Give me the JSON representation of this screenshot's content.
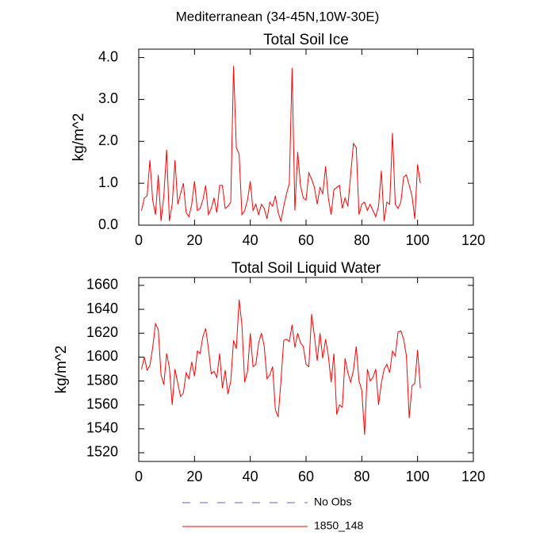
{
  "title": "Mediterranean (34-45N,10W-30E)",
  "legend": [
    {
      "name": "No Obs",
      "color": "#6a5acd",
      "dashed": true
    },
    {
      "name": "1850_148",
      "color": "#ff0000",
      "dashed": false
    }
  ],
  "chart_data": [
    {
      "type": "line",
      "title": "Total Soil Ice",
      "ylabel": "kg/m^2",
      "x": [
        1,
        2,
        3,
        4,
        5,
        6,
        7,
        8,
        9,
        10,
        11,
        12,
        13,
        14,
        15,
        16,
        17,
        18,
        19,
        20,
        21,
        22,
        23,
        24,
        25,
        26,
        27,
        28,
        29,
        30,
        31,
        32,
        33,
        34,
        35,
        36,
        37,
        38,
        39,
        40,
        41,
        42,
        43,
        44,
        45,
        46,
        47,
        48,
        49,
        50,
        51,
        52,
        53,
        54,
        55,
        56,
        57,
        58,
        59,
        60,
        61,
        62,
        63,
        64,
        65,
        66,
        67,
        68,
        69,
        70,
        71,
        72,
        73,
        74,
        75,
        76,
        77,
        78,
        79,
        80,
        81,
        82,
        83,
        84,
        85,
        86,
        87,
        88,
        89,
        90,
        91,
        92,
        93,
        94,
        95,
        96,
        97,
        98,
        99,
        100,
        101
      ],
      "series": [
        {
          "name": "1850_148",
          "color": "#ff0000",
          "values": [
            0.35,
            0.65,
            0.7,
            1.55,
            0.6,
            0.25,
            1.2,
            0.1,
            0.7,
            1.8,
            0.1,
            0.5,
            1.55,
            0.5,
            0.75,
            1.0,
            0.3,
            0.2,
            0.5,
            1.05,
            0.35,
            0.4,
            0.6,
            0.95,
            0.25,
            0.4,
            0.65,
            0.3,
            0.95,
            0.95,
            0.4,
            0.45,
            0.55,
            3.8,
            1.85,
            1.7,
            0.25,
            0.35,
            0.6,
            1.05,
            0.35,
            0.5,
            0.25,
            0.5,
            0.4,
            0.15,
            0.55,
            0.45,
            0.7,
            0.3,
            0.1,
            0.45,
            0.75,
            1.0,
            3.75,
            0.35,
            1.75,
            0.95,
            0.65,
            0.6,
            1.25,
            1.1,
            0.9,
            0.5,
            0.9,
            0.75,
            1.4,
            0.65,
            0.25,
            0.85,
            0.9,
            0.95,
            0.4,
            0.65,
            0.45,
            1.2,
            1.95,
            1.85,
            0.25,
            0.5,
            0.55,
            0.35,
            0.5,
            0.35,
            0.2,
            0.45,
            1.3,
            0.1,
            0.55,
            0.5,
            2.2,
            0.5,
            0.4,
            0.55,
            1.15,
            1.2,
            0.95,
            0.7,
            0.15,
            1.45,
            1.0
          ]
        }
      ],
      "xlim": [
        0,
        120
      ],
      "xticks": [
        0,
        20,
        40,
        60,
        80,
        100,
        120
      ],
      "ylim": [
        0,
        4.2
      ],
      "yticks": [
        {
          "value": 0,
          "label": "0.0"
        },
        {
          "value": 1,
          "label": "1.0"
        },
        {
          "value": 2,
          "label": "2.0"
        },
        {
          "value": 3,
          "label": "3.0"
        },
        {
          "value": 4,
          "label": "4.0"
        }
      ]
    },
    {
      "type": "line",
      "title": "Total Soil Liquid Water",
      "ylabel": "kg/m^2",
      "x": [
        1,
        2,
        3,
        4,
        5,
        6,
        7,
        8,
        9,
        10,
        11,
        12,
        13,
        14,
        15,
        16,
        17,
        18,
        19,
        20,
        21,
        22,
        23,
        24,
        25,
        26,
        27,
        28,
        29,
        30,
        31,
        32,
        33,
        34,
        35,
        36,
        37,
        38,
        39,
        40,
        41,
        42,
        43,
        44,
        45,
        46,
        47,
        48,
        49,
        50,
        51,
        52,
        53,
        54,
        55,
        56,
        57,
        58,
        59,
        60,
        61,
        62,
        63,
        64,
        65,
        66,
        67,
        68,
        69,
        70,
        71,
        72,
        73,
        74,
        75,
        76,
        77,
        78,
        79,
        80,
        81,
        82,
        83,
        84,
        85,
        86,
        87,
        88,
        89,
        90,
        91,
        92,
        93,
        94,
        95,
        96,
        97,
        98,
        99,
        100,
        101
      ],
      "series": [
        {
          "name": "1850_148",
          "color": "#ff0000",
          "values": [
            1590,
            1600,
            1589,
            1593,
            1608,
            1628,
            1623,
            1585,
            1577,
            1603,
            1591,
            1560,
            1590,
            1578,
            1567,
            1570,
            1587,
            1582,
            1596,
            1584,
            1605,
            1603,
            1617,
            1624,
            1607,
            1586,
            1588,
            1583,
            1603,
            1574,
            1589,
            1569,
            1580,
            1614,
            1607,
            1648,
            1627,
            1579,
            1588,
            1620,
            1592,
            1594,
            1612,
            1620,
            1609,
            1582,
            1585,
            1592,
            1556,
            1550,
            1580,
            1614,
            1615,
            1613,
            1627,
            1608,
            1620,
            1612,
            1609,
            1594,
            1592,
            1636,
            1618,
            1597,
            1620,
            1599,
            1615,
            1601,
            1579,
            1603,
            1552,
            1560,
            1558,
            1599,
            1587,
            1579,
            1589,
            1609,
            1580,
            1572,
            1535,
            1590,
            1580,
            1583,
            1590,
            1560,
            1578,
            1590,
            1594,
            1587,
            1605,
            1601,
            1621,
            1622,
            1615,
            1601,
            1549,
            1576,
            1578,
            1606,
            1574
          ]
        }
      ],
      "xlim": [
        0,
        120
      ],
      "xticks": [
        0,
        20,
        40,
        60,
        80,
        100,
        120
      ],
      "ylim": [
        1512.7,
        1666.6
      ],
      "yticks": [
        1520,
        1540,
        1560,
        1580,
        1600,
        1620,
        1640,
        1660
      ]
    }
  ]
}
